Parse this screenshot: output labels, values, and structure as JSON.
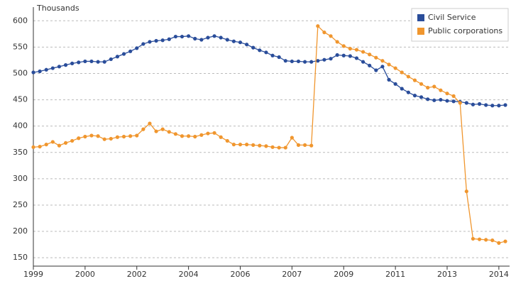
{
  "chart_data": {
    "type": "line",
    "y_label": "Thousands",
    "categories": [
      "1999",
      null,
      null,
      null,
      null,
      null,
      null,
      null,
      "2000",
      null,
      null,
      null,
      null,
      null,
      null,
      null,
      "2002",
      null,
      null,
      null,
      null,
      null,
      null,
      null,
      "2004",
      null,
      null,
      null,
      null,
      null,
      null,
      null,
      "2006",
      null,
      null,
      null,
      null,
      null,
      null,
      null,
      "2007",
      null,
      null,
      null,
      null,
      null,
      null,
      null,
      "2009",
      null,
      null,
      null,
      null,
      null,
      null,
      null,
      "2011",
      null,
      null,
      null,
      null,
      null,
      null,
      null,
      "2013",
      null,
      null,
      null,
      null,
      null,
      null,
      null,
      "2014",
      null
    ],
    "series": [
      {
        "name": "Civil Service",
        "color": "#2a4d9a",
        "values": [
          502,
          504,
          507,
          510,
          513,
          516,
          519,
          521,
          523,
          523,
          522,
          522,
          527,
          532,
          537,
          542,
          548,
          556,
          560,
          562,
          563,
          565,
          570,
          570,
          571,
          566,
          564,
          568,
          571,
          568,
          564,
          561,
          559,
          555,
          549,
          544,
          540,
          534,
          531,
          524,
          523,
          523,
          522,
          522,
          524,
          526,
          528,
          535,
          534,
          533,
          529,
          522,
          515,
          506,
          513,
          488,
          480,
          471,
          464,
          458,
          455,
          451,
          449,
          450,
          448,
          447,
          446,
          444,
          441,
          442,
          440,
          439,
          439,
          440
        ]
      },
      {
        "name": "Public corporations",
        "color": "#f0962e",
        "values": [
          360,
          361,
          365,
          370,
          363,
          368,
          372,
          377,
          380,
          382,
          381,
          375,
          376,
          379,
          380,
          381,
          382,
          394,
          405,
          390,
          394,
          389,
          385,
          381,
          381,
          380,
          383,
          386,
          387,
          379,
          372,
          365,
          365,
          365,
          364,
          363,
          362,
          360,
          359,
          359,
          378,
          364,
          364,
          363,
          590,
          578,
          571,
          560,
          552,
          547,
          545,
          541,
          536,
          530,
          524,
          517,
          510,
          502,
          494,
          487,
          480,
          473,
          475,
          468,
          462,
          457,
          444,
          276,
          186,
          185,
          184,
          183,
          178,
          181
        ]
      }
    ],
    "ylim": [
      134,
      626
    ],
    "yticks": [
      150,
      200,
      250,
      300,
      350,
      400,
      450,
      500,
      550,
      600
    ],
    "grid": true,
    "legend": "top-right"
  }
}
